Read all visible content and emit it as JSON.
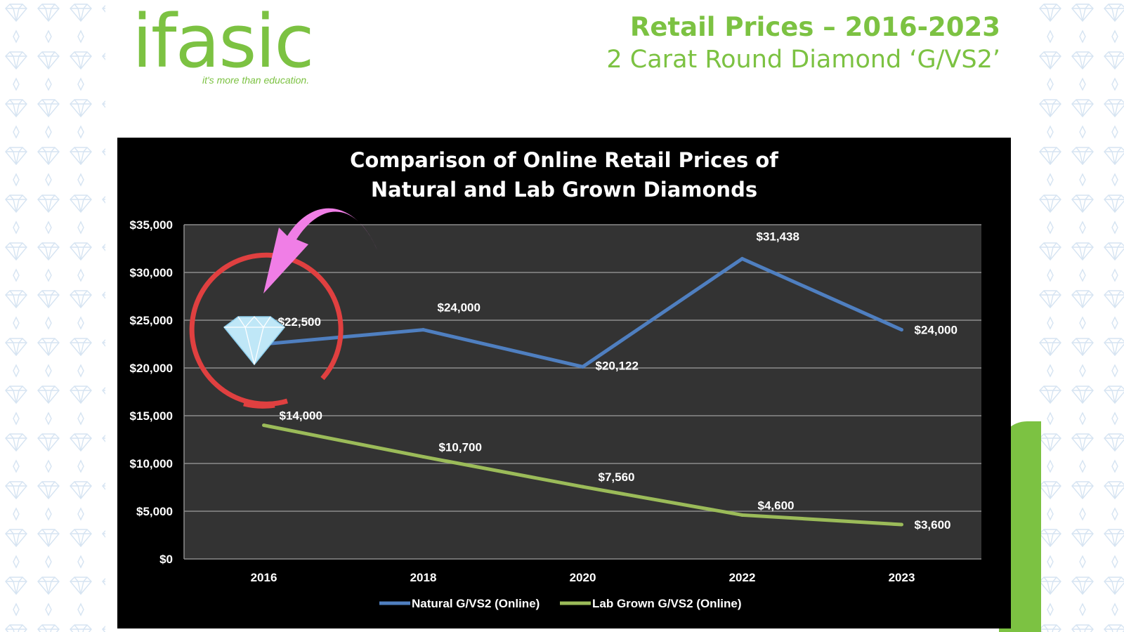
{
  "logo": {
    "text": "ifasic",
    "tagline": "it's more than education.",
    "color": "#7cc242"
  },
  "header": {
    "title_line1": "Retail Prices – 2016-2023",
    "title_line2": "2 Carat Round Diamond ‘G/VS2’"
  },
  "colors": {
    "natural": "#4f7fc0",
    "lab": "#9bbb59",
    "plot_bg": "#333333",
    "panel_bg": "#000000",
    "circle": "#e04040",
    "arrow": "#f07ee6",
    "brand_green": "#7cc242"
  },
  "chart_data": {
    "type": "line",
    "title_line1": "Comparison of Online Retail Prices of",
    "title_line2": "Natural and Lab Grown Diamonds",
    "categories": [
      "2016",
      "2018",
      "2020",
      "2022",
      "2023"
    ],
    "ylim": [
      0,
      35000
    ],
    "yticks": [
      "$0",
      "$5,000",
      "$10,000",
      "$15,000",
      "$20,000",
      "$25,000",
      "$30,000",
      "$35,000"
    ],
    "grid": true,
    "legend_position": "bottom",
    "series": [
      {
        "name": "Natural G/VS2 (Online)",
        "values": [
          22500,
          24000,
          20122,
          31438,
          24000
        ],
        "labels": [
          "$22,500",
          "$24,000",
          "$20,122",
          "$31,438",
          "$24,000"
        ]
      },
      {
        "name": "Lab Grown G/VS2 (Online)",
        "values": [
          14000,
          10700,
          7560,
          4600,
          3600
        ],
        "labels": [
          "$14,000",
          "$10,700",
          "$7,560",
          "$4,600",
          "$3,600"
        ]
      }
    ]
  }
}
